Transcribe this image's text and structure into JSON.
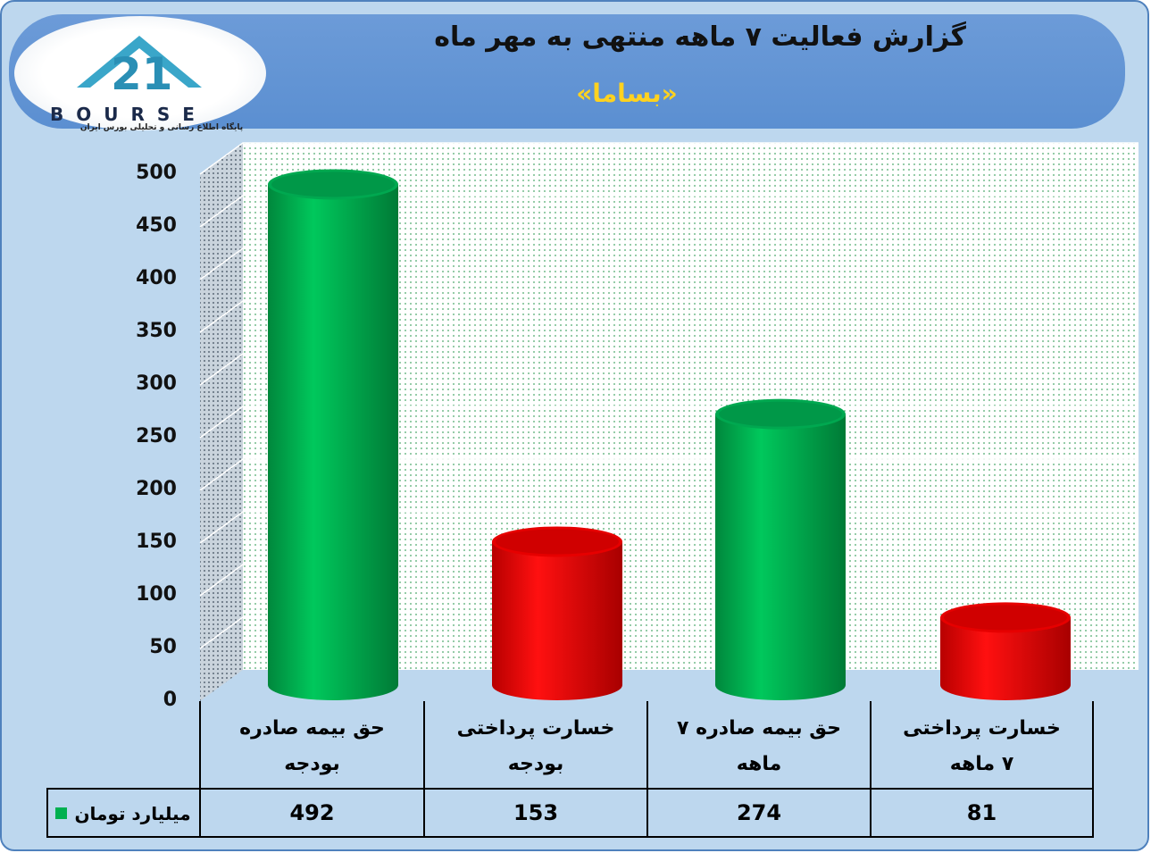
{
  "header": {
    "title": "گزارش فعالیت ۷ ماهه منتهی به مهر ماه",
    "subtitle": "«بساما»",
    "logo_text": "BOURSE",
    "logo_subtitle": "پایگاه اطلاع رسانی و تحلیلی بورس ایران"
  },
  "chart_data": {
    "type": "bar",
    "title": "گزارش فعالیت ۷ ماهه منتهی به مهر ماه",
    "subtitle": "«بساما»",
    "categories": [
      "حق بیمه صادره\nبودجه",
      "خسارت پرداختی\nبودجه",
      "حق بیمه صادره ۷\nماهه",
      "خسارت پرداختی\n۷ ماهه"
    ],
    "series": [
      {
        "name": "میلیارد تومان",
        "values": [
          492,
          153,
          274,
          81
        ]
      }
    ],
    "bar_colors": [
      "#00b050",
      "#e00000",
      "#00b050",
      "#e00000"
    ],
    "yticks": [
      "0",
      "50",
      "100",
      "150",
      "200",
      "250",
      "300",
      "350",
      "400",
      "450",
      "500"
    ],
    "ylim": [
      0,
      500
    ],
    "grid": true,
    "legend": "data-table-left"
  },
  "table": {
    "legend_label": "میلیارد تومان",
    "values_text": [
      "492",
      "153",
      "274",
      "81"
    ]
  },
  "colors": {
    "background": "#bdd7ee",
    "header": "#5b8fd1",
    "title_accent": "#ffd21f",
    "green": "#00b050",
    "red": "#e00000"
  }
}
